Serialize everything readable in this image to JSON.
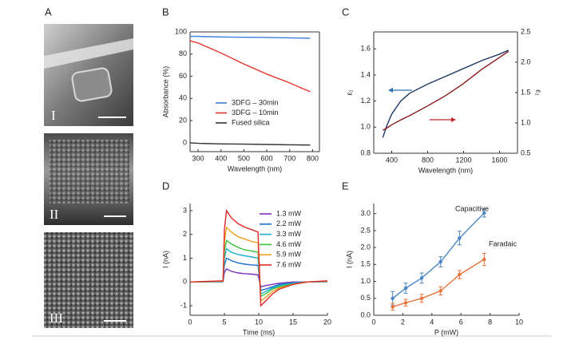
{
  "panel_a": {
    "label": "A",
    "images": [
      {
        "label": "I"
      },
      {
        "label": "II"
      },
      {
        "label": "III"
      }
    ]
  },
  "chart_data": [
    {
      "type": "line",
      "panel_label": "B",
      "xlabel": "Wavelength (nm)",
      "ylabel": "Absorbance (%)",
      "xlim": [
        265,
        830
      ],
      "xticks": [
        300,
        400,
        500,
        600,
        700,
        800
      ],
      "ylim": [
        -8,
        100
      ],
      "yticks": [
        0,
        20,
        40,
        60,
        80,
        100
      ],
      "x": [
        265,
        300,
        400,
        500,
        600,
        700,
        790
      ],
      "series": [
        {
          "name": "3DFG – 30min",
          "color": "#3b7dd8",
          "values": [
            96,
            96,
            95.5,
            95.2,
            95,
            94.7,
            94.3
          ]
        },
        {
          "name": "3DFG – 10min",
          "color": "#e0362c",
          "values": [
            92,
            90,
            81,
            71,
            62,
            54,
            46
          ]
        },
        {
          "name": "Fused silica",
          "color": "#333333",
          "values": [
            0,
            -0.5,
            -1,
            -1.2,
            -1.5,
            -1.8,
            -2
          ]
        }
      ]
    },
    {
      "type": "line",
      "panel_label": "C",
      "xlabel": "Wavelength (nm)",
      "ylabel": "ε₁",
      "y2label": "ε₂",
      "xlim": [
        200,
        1800
      ],
      "xticks": [
        400,
        800,
        1200,
        1600
      ],
      "ylim": [
        0.8,
        1.73
      ],
      "yticks": [
        {
          "value": 0.8,
          "label": "0.8"
        },
        {
          "value": 1,
          "label": "1.0"
        },
        {
          "value": 1.2,
          "label": "1.2"
        },
        {
          "value": 1.4,
          "label": "1.4"
        },
        {
          "value": 1.6,
          "label": "1.6"
        }
      ],
      "y2lim": [
        0.5,
        2.5
      ],
      "y2ticks": [
        0.5,
        {
          "value": 1,
          "label": "1.0"
        },
        1.5,
        {
          "value": 2,
          "label": "2.0"
        },
        2.5
      ],
      "x": [
        300,
        350,
        400,
        500,
        600,
        800,
        1000,
        1200,
        1400,
        1600,
        1700
      ],
      "series": [
        {
          "color": "#1f3864",
          "values": [
            0.92,
            1.02,
            1.1,
            1.2,
            1.26,
            1.33,
            1.39,
            1.45,
            1.51,
            1.56,
            1.59
          ]
        },
        {
          "color": "#8b1a1a",
          "axis": "y2",
          "values": [
            0.88,
            0.92,
            0.97,
            1.05,
            1.12,
            1.28,
            1.45,
            1.65,
            1.88,
            2.08,
            2.18
          ]
        }
      ]
    },
    {
      "type": "line",
      "panel_label": "D",
      "xlabel": "Time (ms)",
      "ylabel": "I (nA)",
      "xlim": [
        0,
        20
      ],
      "xticks": [
        0,
        5,
        10,
        15,
        20
      ],
      "ylim": [
        -1.4,
        3.3
      ],
      "yticks": [
        -1,
        0,
        1,
        2,
        3
      ],
      "x": [
        0,
        4.8,
        5,
        5.3,
        6,
        7,
        8,
        9,
        9.9,
        10.3,
        11,
        12,
        13,
        15,
        17,
        20
      ],
      "series": [
        {
          "name": "1.3 mW",
          "color": "#7b2fbe",
          "values": [
            0,
            0.01,
            0.4,
            0.55,
            0.45,
            0.38,
            0.35,
            0.33,
            0.3,
            -0.2,
            -0.15,
            -0.1,
            -0.05,
            0,
            0,
            0.01
          ]
        },
        {
          "name": "2.2 mW",
          "color": "#1f6fd0",
          "values": [
            0,
            0.02,
            0.7,
            1.0,
            0.9,
            0.8,
            0.75,
            0.72,
            0.7,
            -0.35,
            -0.3,
            -0.2,
            -0.1,
            -0.04,
            0,
            0.02
          ]
        },
        {
          "name": "3.3 mW",
          "color": "#1ab0c8",
          "values": [
            0,
            0.02,
            1.0,
            1.4,
            1.25,
            1.15,
            1.1,
            1.05,
            1.0,
            -0.5,
            -0.4,
            -0.25,
            -0.15,
            -0.05,
            0,
            0.02
          ]
        },
        {
          "name": "4.6 mW",
          "color": "#39c23a",
          "values": [
            0,
            0.03,
            1.3,
            1.75,
            1.6,
            1.45,
            1.35,
            1.3,
            1.25,
            -0.6,
            -0.5,
            -0.3,
            -0.2,
            -0.08,
            0,
            0.03
          ]
        },
        {
          "name": "5.9 mW",
          "color": "#f0a020",
          "values": [
            0,
            0.04,
            1.7,
            2.3,
            2.1,
            1.9,
            1.8,
            1.7,
            1.65,
            -0.8,
            -0.65,
            -0.4,
            -0.25,
            -0.1,
            0,
            0.04
          ]
        },
        {
          "name": "7.6 mW",
          "color": "#e02828",
          "values": [
            0,
            0.05,
            2.2,
            3.0,
            2.7,
            2.45,
            2.3,
            2.2,
            2.1,
            -1.0,
            -0.8,
            -0.5,
            -0.3,
            -0.1,
            0,
            0.05
          ]
        }
      ]
    },
    {
      "type": "line",
      "panel_label": "E",
      "xlabel": "P (mW)",
      "ylabel": "I (nA)",
      "xlim": [
        0,
        10
      ],
      "xticks": [
        0,
        2,
        4,
        6,
        8,
        10
      ],
      "ylim": [
        0,
        3.3
      ],
      "yticks": [
        {
          "value": 0,
          "label": "0.0"
        },
        0.5,
        {
          "value": 1,
          "label": "1.0"
        },
        1.5,
        {
          "value": 2,
          "label": "2.0"
        },
        2.5,
        {
          "value": 3,
          "label": "3.0"
        }
      ],
      "x": [
        1.3,
        2.2,
        3.3,
        4.6,
        5.9,
        7.6
      ],
      "series": [
        {
          "name": "Capacitive",
          "color": "#4a86c5",
          "values": [
            0.5,
            0.8,
            1.1,
            1.58,
            2.28,
            3.02
          ],
          "errors": [
            0.2,
            0.15,
            0.15,
            0.15,
            0.2,
            0.12
          ]
        },
        {
          "name": "Faradaic",
          "color": "#e8743b",
          "values": [
            0.25,
            0.37,
            0.5,
            0.72,
            1.2,
            1.65
          ],
          "errors": [
            0.1,
            0.1,
            0.12,
            0.12,
            0.12,
            0.18
          ]
        }
      ]
    }
  ]
}
